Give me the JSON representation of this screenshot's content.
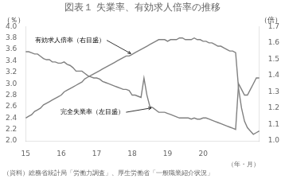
{
  "chart_data": {
    "type": "line",
    "title": "図表１ 失業率、有効求人倍率の推移",
    "ylabel": "（％）",
    "y2label": "（倍）",
    "xlabel": "（年・月）",
    "source": "（資料）総務省統計局「労働力調査」、厚生労働省「一般職業紹介状況」",
    "categories": [
      "15",
      null,
      null,
      null,
      null,
      null,
      null,
      null,
      null,
      null,
      null,
      null,
      "16",
      null,
      null,
      null,
      null,
      null,
      null,
      null,
      null,
      null,
      null,
      null,
      "17",
      null,
      null,
      null,
      null,
      null,
      null,
      null,
      null,
      null,
      null,
      null,
      "18",
      null,
      null,
      null,
      null,
      null,
      null,
      null,
      null,
      null,
      null,
      null,
      "19",
      null,
      null,
      null,
      null,
      null,
      null,
      null,
      null,
      null,
      null,
      null,
      "20",
      null,
      null,
      null,
      null,
      null,
      null,
      null,
      null,
      null,
      null,
      null,
      null,
      null,
      null,
      null,
      null,
      null,
      null,
      null
    ],
    "series": [
      {
        "name": "完全失業率（左目盛）",
        "color": "#808080",
        "values": [
          3.56,
          3.56,
          3.54,
          3.52,
          3.52,
          3.48,
          3.44,
          3.42,
          3.42,
          3.38,
          3.38,
          3.36,
          3.36,
          3.38,
          3.34,
          3.32,
          3.28,
          3.22,
          3.22,
          3.22,
          3.18,
          3.14,
          3.12,
          3.1,
          3.1,
          3.08,
          3.04,
          3.02,
          3.0,
          2.98,
          2.96,
          2.94,
          2.92,
          2.9,
          2.9,
          2.88,
          2.8,
          2.8,
          2.78,
          2.76,
          3.1,
          2.8,
          2.6,
          2.58,
          2.54,
          2.5,
          2.5,
          2.5,
          2.48,
          2.46,
          2.44,
          2.42,
          2.4,
          2.4,
          2.4,
          2.4,
          2.38,
          2.4,
          2.38,
          2.38,
          2.4,
          2.4,
          2.38,
          2.36,
          2.34,
          2.32,
          2.3,
          2.28,
          2.26,
          2.24,
          2.22,
          2.2,
          3.0,
          2.9,
          2.8,
          2.8,
          2.9,
          3.0,
          3.1,
          3.1
        ]
      },
      {
        "name": "有効求人倍率（右目盛）",
        "color": "#808080",
        "axis": "y2",
        "values": [
          1.14,
          1.15,
          1.16,
          1.18,
          1.19,
          1.2,
          1.22,
          1.23,
          1.24,
          1.25,
          1.26,
          1.27,
          1.28,
          1.3,
          1.31,
          1.32,
          1.33,
          1.34,
          1.35,
          1.36,
          1.38,
          1.39,
          1.4,
          1.41,
          1.42,
          1.43,
          1.44,
          1.45,
          1.46,
          1.47,
          1.48,
          1.49,
          1.5,
          1.51,
          1.52,
          1.52,
          1.53,
          1.54,
          1.55,
          1.56,
          1.57,
          1.58,
          1.59,
          1.6,
          1.61,
          1.62,
          1.62,
          1.62,
          1.61,
          1.62,
          1.62,
          1.62,
          1.63,
          1.63,
          1.62,
          1.62,
          1.62,
          1.63,
          1.62,
          1.62,
          1.61,
          1.61,
          1.6,
          1.6,
          1.59,
          1.58,
          1.58,
          1.57,
          1.56,
          1.55,
          1.55,
          1.54,
          1.32,
          1.2,
          1.12,
          1.08,
          1.06,
          1.04,
          1.05,
          1.06
        ]
      }
    ],
    "ylim": [
      2.0,
      4.0
    ],
    "yticks": [
      {
        "value": 2.0,
        "label": "2.0"
      },
      2.2,
      2.4,
      2.6,
      2.8,
      {
        "value": 3.0,
        "label": "3.0"
      },
      3.2,
      3.4,
      3.6,
      3.8,
      {
        "value": 4.0,
        "label": "4.0"
      }
    ],
    "y2lim": [
      1.0,
      1.7
    ],
    "y2ticks": [
      {
        "value": 1.0,
        "label": "1.0"
      },
      1.1,
      1.2,
      1.3,
      1.4,
      1.5,
      1.6,
      1.7
    ],
    "grid": false
  }
}
